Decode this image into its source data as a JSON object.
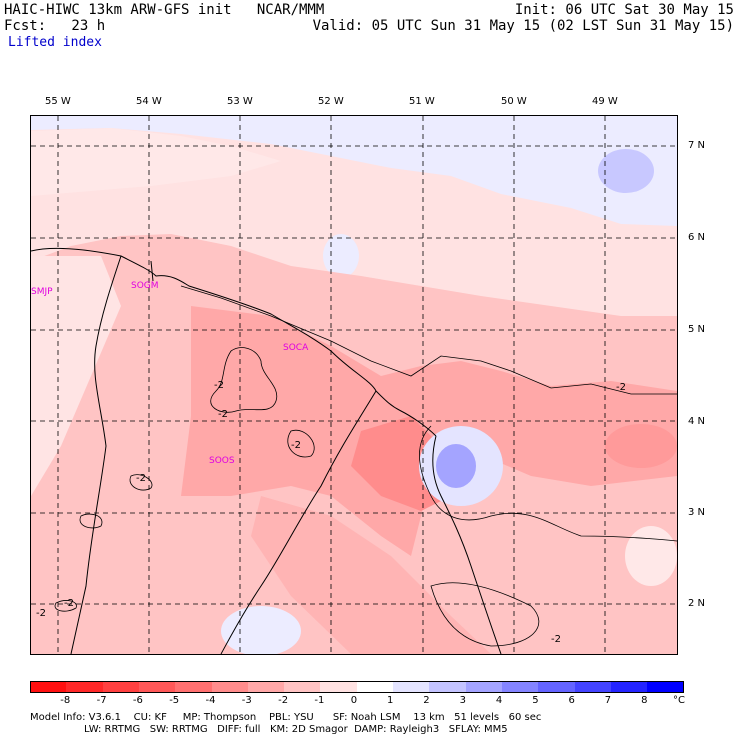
{
  "header": {
    "line1_left": "HAIC-HIWC 13km ARW-GFS init   NCAR/MMM",
    "line1_right": "Init: 06 UTC Sat 30 May 15",
    "line2_left": "Fcst:   23 h",
    "line2_right": "Valid: 05 UTC Sun 31 May 15 (02 LST Sun 31 May 15)",
    "field": "Lifted index"
  },
  "map": {
    "lon_labels": [
      "55 W",
      "54 W",
      "53 W",
      "52 W",
      "51 W",
      "50 W",
      "49 W"
    ],
    "lat_labels": [
      "7 N",
      "6 N",
      "5 N",
      "4 N",
      "3 N",
      "2 N"
    ],
    "stations": [
      "SMJP",
      "SOGM",
      "SOCA",
      "SOOS"
    ],
    "contour_labels": [
      "-2",
      "-2",
      "-2",
      "-2",
      "-2",
      "-2",
      "-2",
      "-2"
    ]
  },
  "colorbar": {
    "values": [
      "-8",
      "-7",
      "-6",
      "-5",
      "-4",
      "-3",
      "-2",
      "-1",
      "0",
      "1",
      "2",
      "3",
      "4",
      "5",
      "6",
      "7",
      "8"
    ],
    "unit": "°C",
    "colors": [
      "#ff1010",
      "#ff2828",
      "#ff4040",
      "#ff5858",
      "#ff7070",
      "#ff8c8c",
      "#ffa8a8",
      "#ffc4c4",
      "#ffe2e2",
      "#ffffff",
      "#e4e4ff",
      "#c4c4ff",
      "#a4a4ff",
      "#8484ff",
      "#6464ff",
      "#4444ff",
      "#2424ff",
      "#0000ff"
    ]
  },
  "footer": {
    "line1": "Model Info: V3.6.1    CU: KF     MP: Thompson    PBL: YSU      SF: Noah LSM    13 km   51 levels   60 sec",
    "line2": "                 LW: RRTMG   SW: RRTMG   DIFF: full   KM: 2D Smagor  DAMP: Rayleigh3   SFLAY: MM5"
  }
}
